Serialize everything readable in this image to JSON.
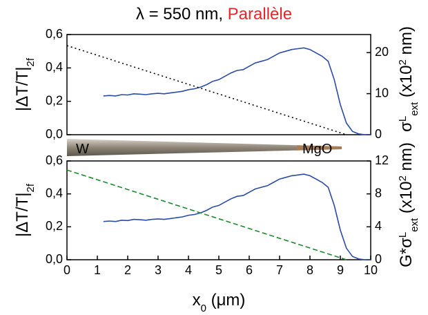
{
  "title": {
    "text": "λ = 550 nm,",
    "highlight": "Parallèle",
    "highlight_color": "#e8262a"
  },
  "tip": {
    "left_label": "W",
    "right_label": "MgO"
  },
  "chart_data": [
    {
      "type": "line",
      "ylabel": [
        "|ΔT/T|",
        "2f"
      ],
      "y2label": [
        "σ",
        "L",
        "ext",
        " (x10",
        "2",
        " nm)"
      ],
      "xlim": [
        0,
        10
      ],
      "ylim": [
        0,
        0.6
      ],
      "yticks": [
        {
          "value": 0,
          "label": "0,0"
        },
        {
          "value": 0.2,
          "label": "0,2"
        },
        {
          "value": 0.4,
          "label": "0,4"
        },
        {
          "value": 0.6,
          "label": "0,6"
        }
      ],
      "y2lim": [
        0,
        24.4
      ],
      "y2ticks": [
        0,
        10,
        20
      ],
      "series": [
        {
          "color": "#2a4aa8",
          "style": "solid",
          "axis": "y",
          "x": [
            1.2,
            1.4,
            1.6,
            1.8,
            2.0,
            2.2,
            2.4,
            2.6,
            2.8,
            3.0,
            3.2,
            3.4,
            3.6,
            3.8,
            4.0,
            4.2,
            4.4,
            4.6,
            4.8,
            5.0,
            5.2,
            5.4,
            5.6,
            5.8,
            6.0,
            6.2,
            6.4,
            6.6,
            6.8,
            7.0,
            7.2,
            7.4,
            7.6,
            7.8,
            8.0,
            8.2,
            8.4,
            8.6,
            8.8,
            9.0,
            9.2,
            9.4,
            9.6,
            9.8,
            10.0
          ],
          "values": [
            0.232,
            0.235,
            0.232,
            0.24,
            0.238,
            0.245,
            0.243,
            0.24,
            0.245,
            0.248,
            0.245,
            0.25,
            0.255,
            0.26,
            0.27,
            0.275,
            0.285,
            0.3,
            0.32,
            0.33,
            0.35,
            0.37,
            0.385,
            0.39,
            0.41,
            0.43,
            0.44,
            0.45,
            0.47,
            0.49,
            0.5,
            0.51,
            0.515,
            0.52,
            0.51,
            0.49,
            0.47,
            0.44,
            0.33,
            0.18,
            0.07,
            0.02,
            0.005,
            0,
            0
          ]
        },
        {
          "color": "#000000",
          "style": "dotted",
          "axis": "y2",
          "x": [
            0,
            9.2
          ],
          "values": [
            21.7,
            0
          ]
        }
      ]
    },
    {
      "type": "line",
      "ylabel": [
        "|ΔT/T|",
        "2f"
      ],
      "y2label": [
        "G*σ",
        "L",
        "ext",
        " (x10",
        "2",
        " nm)"
      ],
      "xlabel": [
        "x",
        "0",
        " (μm)"
      ],
      "xlim": [
        0,
        10
      ],
      "xticks": [
        0,
        1,
        2,
        3,
        4,
        5,
        6,
        7,
        8,
        9,
        10
      ],
      "ylim": [
        0,
        0.6
      ],
      "yticks": [
        {
          "value": 0,
          "label": "0,0"
        },
        {
          "value": 0.2,
          "label": "0,2"
        },
        {
          "value": 0.4,
          "label": "0,4"
        },
        {
          "value": 0.6,
          "label": "0,6"
        }
      ],
      "y2lim": [
        0,
        12
      ],
      "y2ticks": [
        0,
        4,
        8,
        12
      ],
      "series": [
        {
          "color": "#2a4aa8",
          "style": "solid",
          "axis": "y",
          "x": [
            1.2,
            1.4,
            1.6,
            1.8,
            2.0,
            2.2,
            2.4,
            2.6,
            2.8,
            3.0,
            3.2,
            3.4,
            3.6,
            3.8,
            4.0,
            4.2,
            4.4,
            4.6,
            4.8,
            5.0,
            5.2,
            5.4,
            5.6,
            5.8,
            6.0,
            6.2,
            6.4,
            6.6,
            6.8,
            7.0,
            7.2,
            7.4,
            7.6,
            7.8,
            8.0,
            8.2,
            8.4,
            8.6,
            8.8,
            9.0,
            9.2,
            9.4,
            9.6,
            9.8,
            10.0
          ],
          "values": [
            0.232,
            0.235,
            0.232,
            0.24,
            0.238,
            0.245,
            0.243,
            0.24,
            0.245,
            0.248,
            0.245,
            0.25,
            0.255,
            0.26,
            0.27,
            0.275,
            0.285,
            0.3,
            0.32,
            0.33,
            0.35,
            0.37,
            0.385,
            0.39,
            0.41,
            0.43,
            0.44,
            0.45,
            0.47,
            0.49,
            0.5,
            0.51,
            0.515,
            0.52,
            0.51,
            0.49,
            0.47,
            0.44,
            0.33,
            0.18,
            0.07,
            0.02,
            0.005,
            0,
            0
          ]
        },
        {
          "color": "#1a8a2a",
          "style": "dashed",
          "axis": "y2",
          "x": [
            0,
            9.2
          ],
          "values": [
            10.9,
            0
          ]
        }
      ]
    }
  ]
}
